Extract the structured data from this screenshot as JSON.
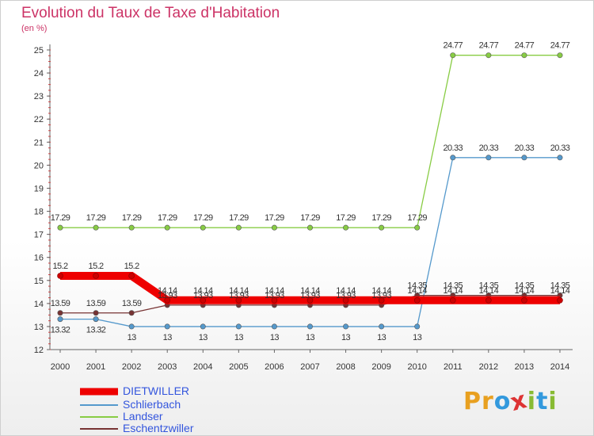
{
  "title": "Evolution du Taux de Taxe d'Habitation",
  "unit_label": "(en %)",
  "logo": {
    "text": "Proxiti",
    "letters": [
      {
        "ch": "P",
        "color": "#e8a020"
      },
      {
        "ch": "r",
        "color": "#e8a020"
      },
      {
        "ch": "o",
        "color": "#3399dd"
      },
      {
        "ch": "x",
        "color": "#dd3333"
      },
      {
        "ch": "i",
        "color": "#88bb33"
      },
      {
        "ch": "t",
        "color": "#3399dd"
      },
      {
        "ch": "i",
        "color": "#88bb33"
      }
    ]
  },
  "chart_data": {
    "type": "line",
    "x": [
      "2000",
      "2001",
      "2002",
      "2003",
      "2004",
      "2005",
      "2006",
      "2007",
      "2008",
      "2009",
      "2010",
      "2011",
      "2012",
      "2013",
      "2014"
    ],
    "ylim": [
      12,
      25
    ],
    "yticks": [
      12,
      13,
      14,
      15,
      16,
      17,
      18,
      19,
      20,
      21,
      22,
      23,
      24,
      25
    ],
    "grid": false,
    "legend_position": "bottom-left",
    "series": [
      {
        "name": "DIETWILLER",
        "color": "#ee0000",
        "thick": true,
        "values": [
          15.2,
          15.2,
          15.2,
          14.14,
          14.14,
          14.14,
          14.14,
          14.14,
          14.14,
          14.14,
          14.14,
          14.14,
          14.14,
          14.14,
          14.14
        ],
        "labels": [
          "15.2",
          "15.2",
          "15.2",
          "14.14",
          "14.14",
          "14.14",
          "14.14",
          "14.14",
          "14.14",
          "14.14",
          "14.14",
          "14.14",
          "14.14",
          "14.14",
          "14.14"
        ]
      },
      {
        "name": "Schlierbach",
        "color": "#5599cc",
        "thick": false,
        "values": [
          13.32,
          13.32,
          13,
          13,
          13,
          13,
          13,
          13,
          13,
          13,
          13,
          20.33,
          20.33,
          20.33,
          20.33
        ],
        "labels": [
          "13.32",
          "13.32",
          "13",
          "13",
          "13",
          "13",
          "13",
          "13",
          "13",
          "13",
          "13",
          "20.33",
          "20.33",
          "20.33",
          "20.33"
        ]
      },
      {
        "name": "Landser",
        "color": "#88cc44",
        "thick": false,
        "values": [
          17.29,
          17.29,
          17.29,
          17.29,
          17.29,
          17.29,
          17.29,
          17.29,
          17.29,
          17.29,
          17.29,
          24.77,
          24.77,
          24.77,
          24.77
        ],
        "labels": [
          "17.29",
          "17.29",
          "17.29",
          "17.29",
          "17.29",
          "17.29",
          "17.29",
          "17.29",
          "17.29",
          "17.29",
          "17.29",
          "24.77",
          "24.77",
          "24.77",
          "24.77"
        ]
      },
      {
        "name": "Eschentzwiller",
        "color": "#773333",
        "thick": false,
        "values": [
          13.59,
          13.59,
          13.59,
          13.93,
          13.93,
          13.93,
          13.93,
          13.93,
          13.93,
          13.93,
          14.35,
          14.35,
          14.35,
          14.35,
          14.35
        ],
        "labels": [
          "13.59",
          "13.59",
          "13.59",
          "13.93",
          "13.93",
          "13.93",
          "13.93",
          "13.93",
          "13.93",
          "13.93",
          "14.35",
          "14.35",
          "14.35",
          "14.35",
          "14.35"
        ]
      }
    ]
  }
}
